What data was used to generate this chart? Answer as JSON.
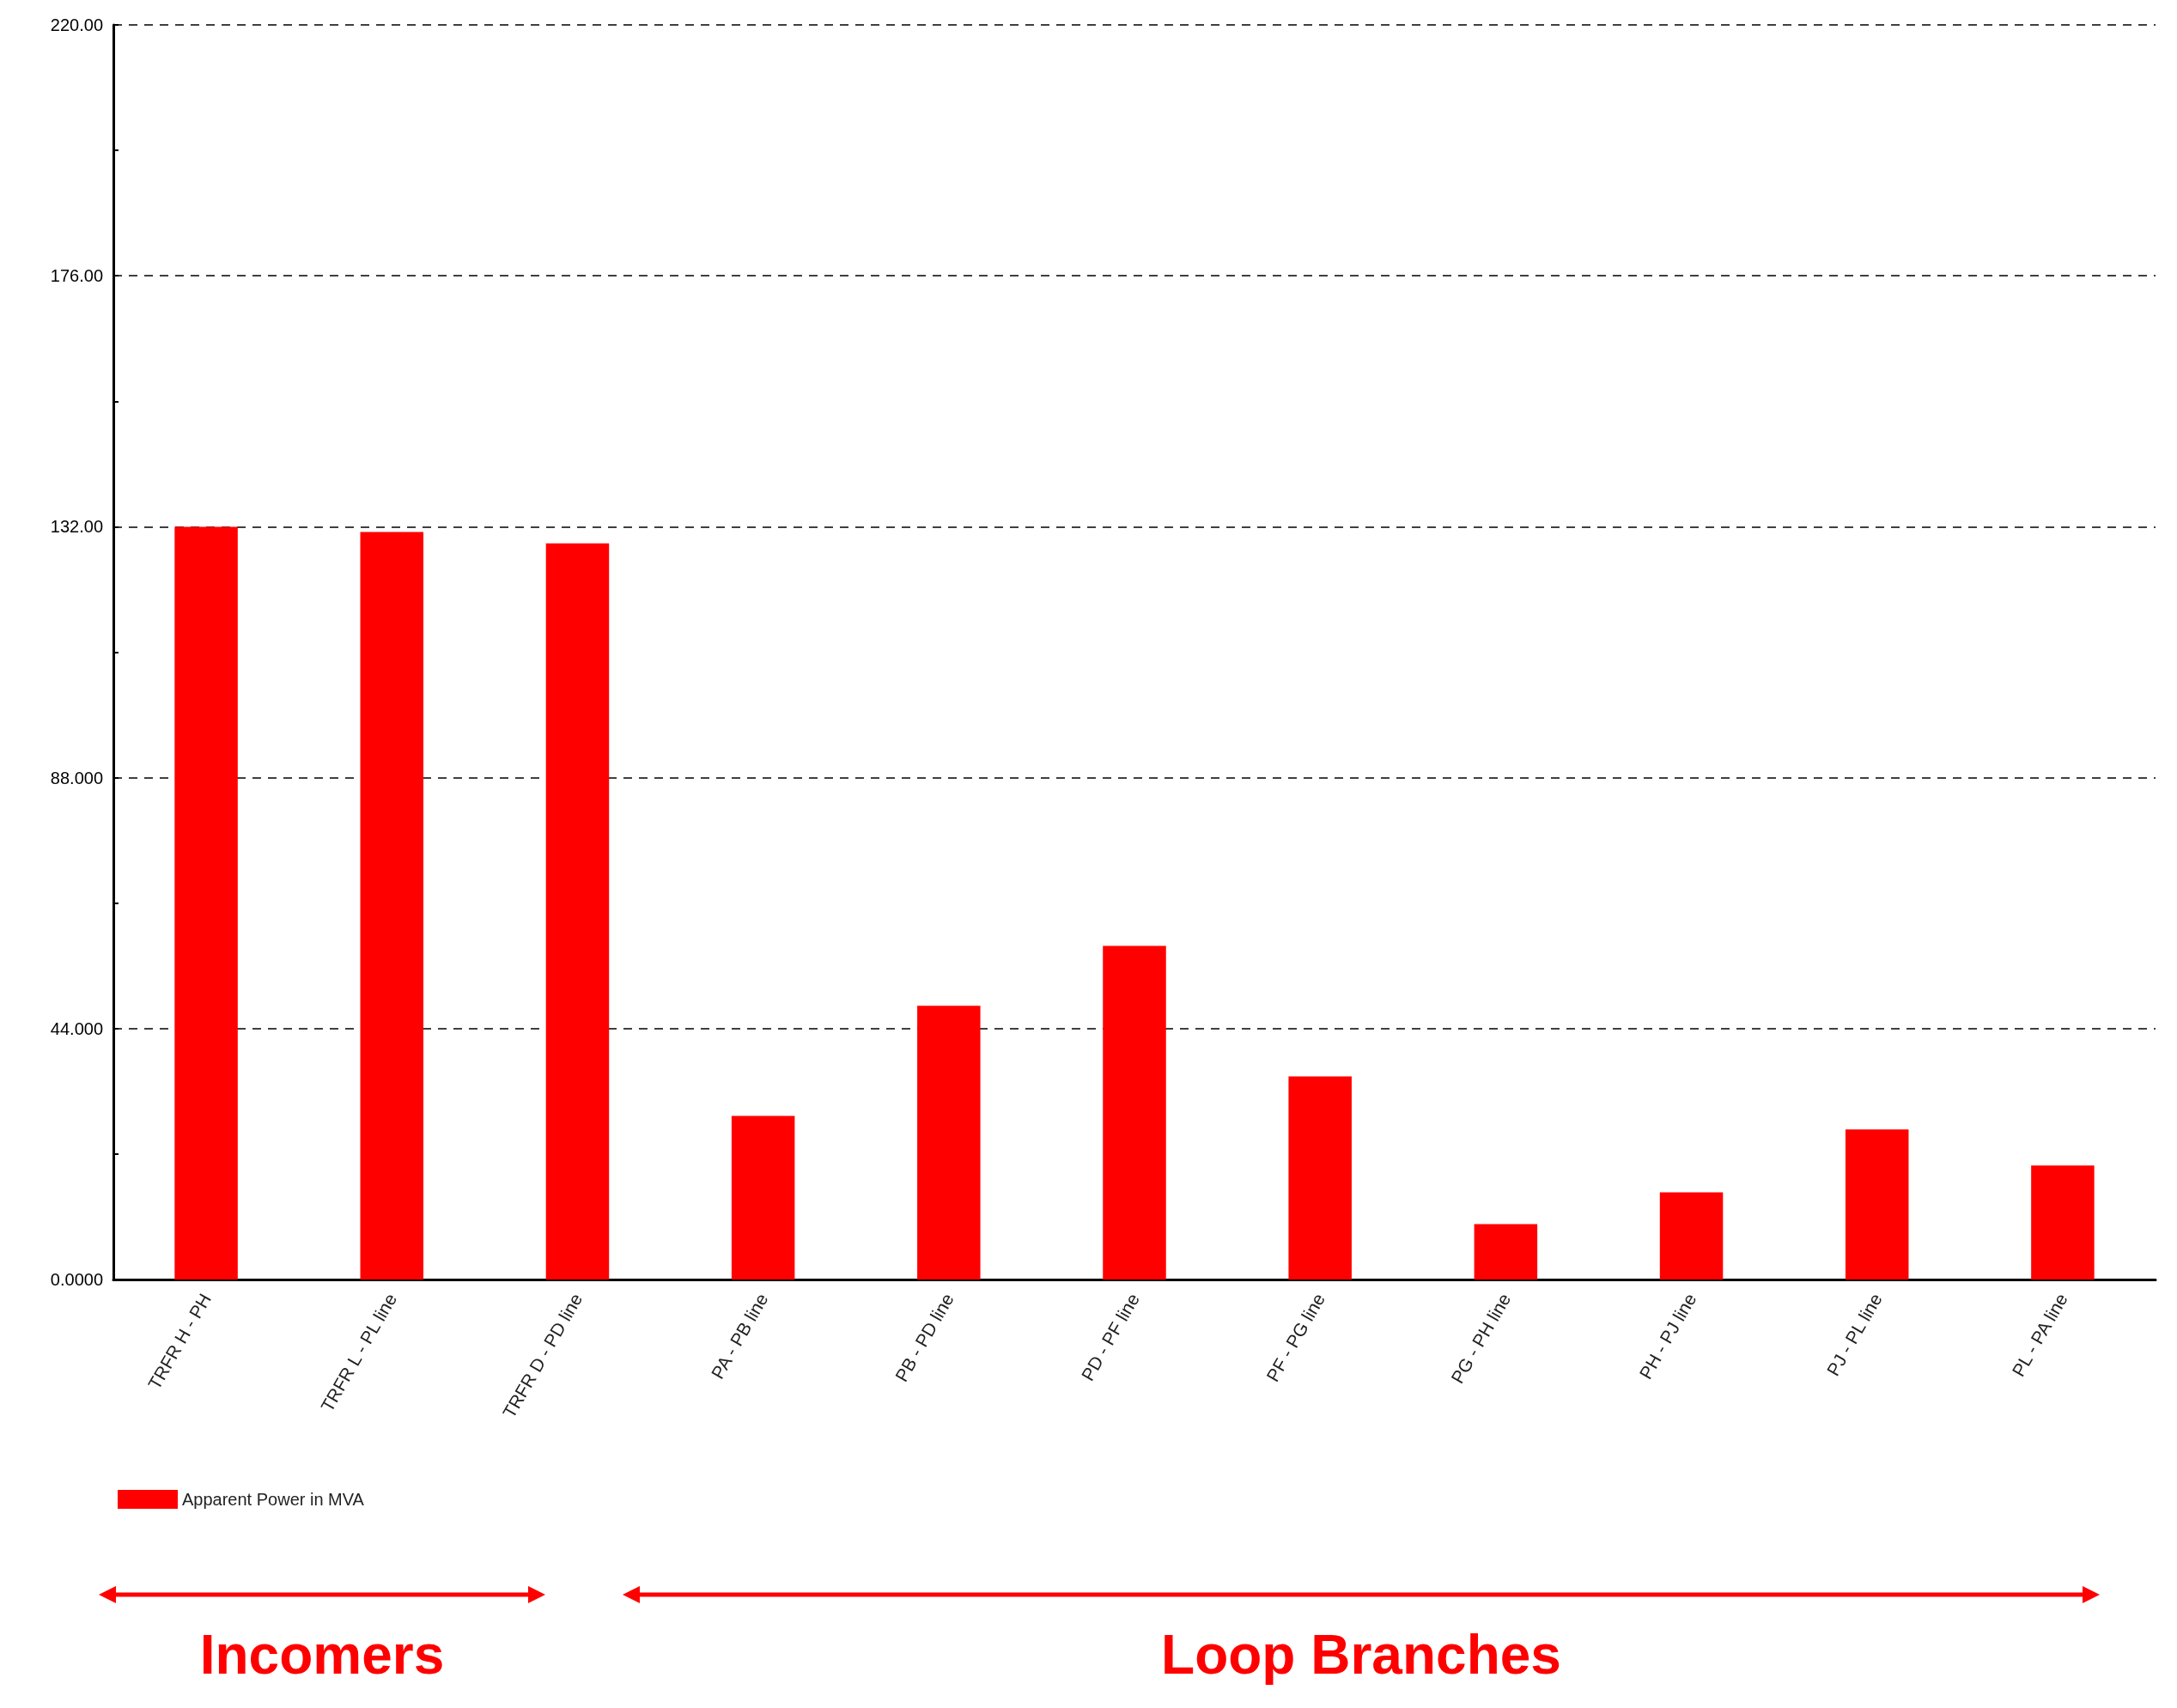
{
  "chart_data": {
    "type": "bar",
    "categories": [
      "TRFR H - PH",
      "TRFR L - PL line",
      "TRFR D - PD line",
      "PA - PB line",
      "PB - PD line",
      "PD - PF line",
      "PF - PG line",
      "PG - PH line",
      "PH - PJ line",
      "PJ - PL line",
      "PL - PA line"
    ],
    "series": [
      {
        "name": "Apparent Power in MVA",
        "color": "#ff0000",
        "values": [
          132.0,
          131.1,
          129.1,
          28.7,
          48.0,
          58.5,
          35.6,
          9.7,
          15.3,
          26.3,
          20.0
        ]
      }
    ],
    "ylim": [
      0,
      220
    ],
    "yticks": [
      {
        "value": 0,
        "label": "0.0000"
      },
      {
        "value": 22,
        "label": null
      },
      {
        "value": 44,
        "label": "44.000"
      },
      {
        "value": 66,
        "label": null
      },
      {
        "value": 88,
        "label": "88.000"
      },
      {
        "value": 110,
        "label": null
      },
      {
        "value": 132,
        "label": "132.00"
      },
      {
        "value": 154,
        "label": null
      },
      {
        "value": 176,
        "label": "176.00"
      },
      {
        "value": 198,
        "label": null
      },
      {
        "value": 220,
        "label": "220.00"
      }
    ],
    "grid": "y",
    "legend": "bottom left",
    "annotations": [
      "Incomers",
      "Loop Branches"
    ]
  }
}
